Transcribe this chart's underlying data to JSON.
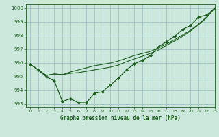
{
  "title": "Graphe pression niveau de la mer (hPa)",
  "background_color": "#cce8dd",
  "grid_color": "#99bbbb",
  "line_color": "#1a5c1a",
  "xlim": [
    -0.5,
    23
  ],
  "ylim": [
    992.8,
    1000.3
  ],
  "yticks": [
    993,
    994,
    995,
    996,
    997,
    998,
    999,
    1000
  ],
  "xticks": [
    0,
    1,
    2,
    3,
    4,
    5,
    6,
    7,
    8,
    9,
    10,
    11,
    12,
    13,
    14,
    15,
    16,
    17,
    18,
    19,
    20,
    21,
    22,
    23
  ],
  "series_jagged": [
    995.9,
    995.5,
    995.0,
    994.7,
    993.2,
    993.4,
    993.1,
    993.1,
    993.8,
    993.9,
    994.4,
    994.9,
    995.5,
    995.95,
    996.2,
    996.55,
    997.2,
    997.55,
    997.95,
    998.45,
    998.75,
    999.35,
    999.5,
    1000.0
  ],
  "series_smooth1": [
    995.9,
    995.5,
    995.1,
    995.2,
    995.15,
    995.25,
    995.3,
    995.4,
    995.5,
    995.6,
    995.7,
    995.85,
    996.1,
    996.3,
    996.5,
    996.7,
    996.95,
    997.3,
    997.6,
    997.95,
    998.35,
    998.8,
    999.3,
    1000.0
  ],
  "series_smooth2": [
    995.9,
    995.5,
    995.1,
    995.2,
    995.15,
    995.35,
    995.5,
    995.65,
    995.8,
    995.9,
    996.0,
    996.15,
    996.35,
    996.55,
    996.7,
    996.85,
    997.1,
    997.4,
    997.7,
    998.05,
    998.4,
    998.85,
    999.35,
    1000.0
  ]
}
